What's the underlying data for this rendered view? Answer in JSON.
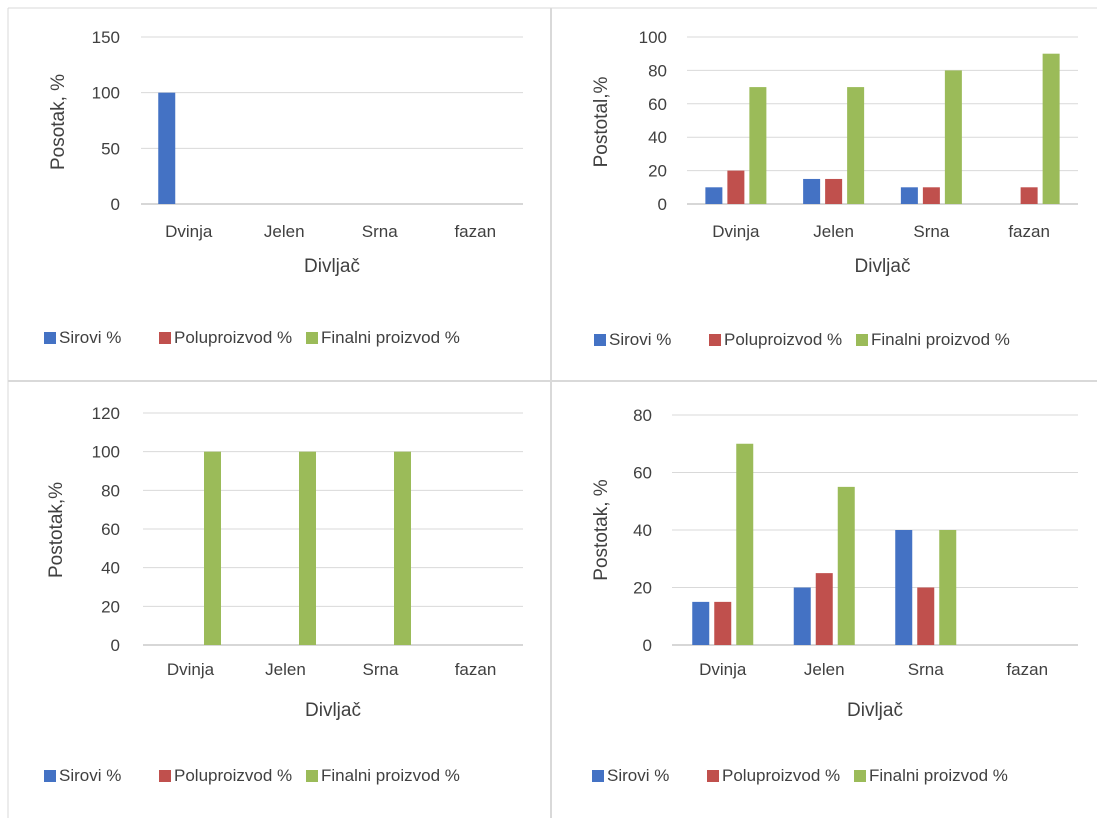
{
  "colors": {
    "series": [
      "#4472c4",
      "#c0504d",
      "#9bbb59"
    ],
    "gridline": "#d9d9d9",
    "axis": "#bfbfbf",
    "text": "#404040"
  },
  "chart_data": [
    {
      "type": "bar",
      "categories": [
        "Dvinja",
        "Jelen",
        "Srna",
        "fazan"
      ],
      "series": [
        {
          "name": "Sirovi %",
          "values": [
            100,
            0,
            0,
            0
          ]
        },
        {
          "name": "Poluproizvod %",
          "values": [
            0,
            0,
            0,
            0
          ]
        },
        {
          "name": "Finalni proizvod %",
          "values": [
            0,
            0,
            0,
            0
          ]
        }
      ],
      "xlabel": "Divljač",
      "ylabel": "Posotak, %",
      "ylim": [
        0,
        150
      ],
      "yticks": [
        0,
        50,
        100,
        150
      ],
      "grid": true,
      "legend": "bottom"
    },
    {
      "type": "bar",
      "categories": [
        "Dvinja",
        "Jelen",
        "Srna",
        "fazan"
      ],
      "series": [
        {
          "name": "Sirovi %",
          "values": [
            10,
            15,
            10,
            0
          ]
        },
        {
          "name": "Poluproizvod %",
          "values": [
            20,
            15,
            10,
            10
          ]
        },
        {
          "name": "Finalni proizvod %",
          "values": [
            70,
            70,
            80,
            90
          ]
        }
      ],
      "xlabel": "Divljač",
      "ylabel": "Postotal,%",
      "ylim": [
        0,
        100
      ],
      "yticks": [
        0,
        20,
        40,
        60,
        80,
        100
      ],
      "grid": true,
      "legend": "bottom"
    },
    {
      "type": "bar",
      "categories": [
        "Dvinja",
        "Jelen",
        "Srna",
        "fazan"
      ],
      "series": [
        {
          "name": "Sirovi %",
          "values": [
            0,
            0,
            0,
            0
          ]
        },
        {
          "name": "Poluproizvod %",
          "values": [
            0,
            0,
            0,
            0
          ]
        },
        {
          "name": "Finalni proizvod %",
          "values": [
            100,
            100,
            100,
            0
          ]
        }
      ],
      "xlabel": "Divljač",
      "ylabel": "Postotak,%",
      "ylim": [
        0,
        120
      ],
      "yticks": [
        0,
        20,
        40,
        60,
        80,
        100,
        120
      ],
      "grid": true,
      "legend": "bottom"
    },
    {
      "type": "bar",
      "categories": [
        "Dvinja",
        "Jelen",
        "Srna",
        "fazan"
      ],
      "series": [
        {
          "name": "Sirovi %",
          "values": [
            15,
            20,
            40,
            0
          ]
        },
        {
          "name": "Poluproizvod %",
          "values": [
            15,
            25,
            20,
            0
          ]
        },
        {
          "name": "Finalni proizvod %",
          "values": [
            70,
            55,
            40,
            0
          ]
        }
      ],
      "xlabel": "Divljač",
      "ylabel": "Postotak, %",
      "ylim": [
        0,
        80
      ],
      "yticks": [
        0,
        20,
        40,
        60,
        80
      ],
      "grid": true,
      "legend": "bottom"
    }
  ]
}
